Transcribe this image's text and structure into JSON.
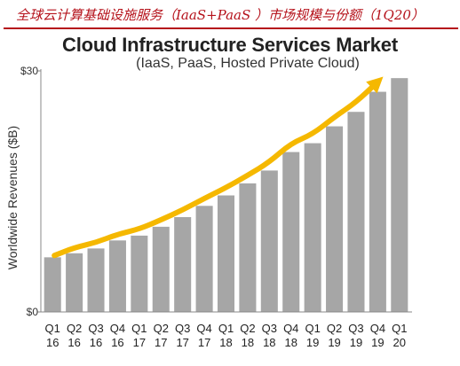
{
  "header": {
    "caption": "全球云计算基础设施服务（IaaS+PaaS ）市场规模与份额（1Q20）"
  },
  "colors": {
    "caption": "#b5121b",
    "bars": "#a6a6a6",
    "trend_arrow": "#f5b800"
  },
  "chart_data": {
    "type": "bar",
    "title": "Cloud Infrastructure Services Market",
    "subtitle": "(IaaS, PaaS, Hosted Private Cloud)",
    "ylabel": "Worldwide Revenues ($B)",
    "xlabel": "",
    "ylim": [
      0,
      30
    ],
    "yticks": [
      "$0",
      "$30"
    ],
    "grid": false,
    "categories": [
      [
        "Q1",
        "16"
      ],
      [
        "Q2",
        "16"
      ],
      [
        "Q3",
        "16"
      ],
      [
        "Q4",
        "16"
      ],
      [
        "Q1",
        "17"
      ],
      [
        "Q2",
        "17"
      ],
      [
        "Q3",
        "17"
      ],
      [
        "Q4",
        "17"
      ],
      [
        "Q1",
        "18"
      ],
      [
        "Q2",
        "18"
      ],
      [
        "Q3",
        "18"
      ],
      [
        "Q4",
        "18"
      ],
      [
        "Q1",
        "19"
      ],
      [
        "Q2",
        "19"
      ],
      [
        "Q3",
        "19"
      ],
      [
        "Q4",
        "19"
      ],
      [
        "Q1",
        "20"
      ]
    ],
    "values": [
      6.8,
      7.3,
      7.9,
      8.9,
      9.5,
      10.6,
      11.8,
      13.2,
      14.5,
      16.0,
      17.6,
      19.9,
      21.0,
      23.1,
      24.9,
      27.4,
      29.1
    ],
    "annotation": "trend arrow rising with revenues"
  }
}
